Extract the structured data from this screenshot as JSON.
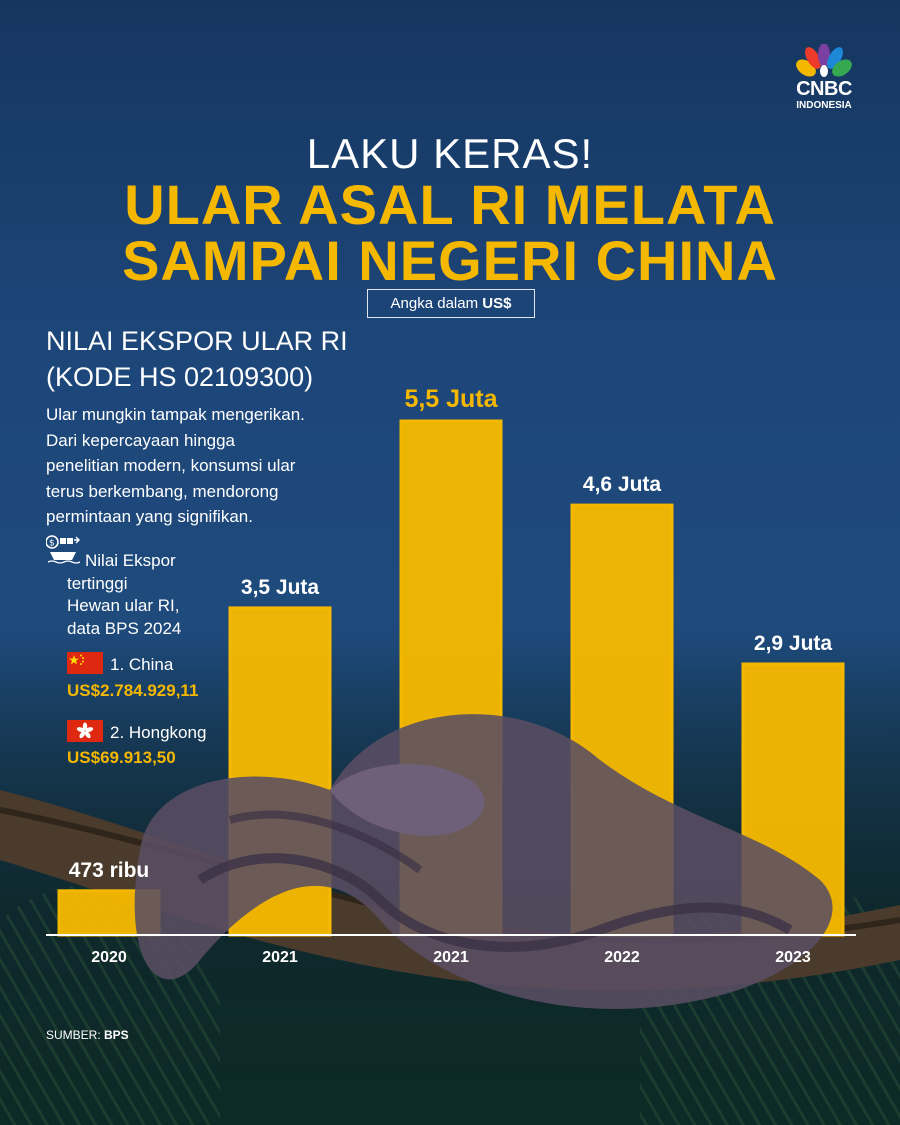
{
  "brand": {
    "logo_text": "CNBC",
    "logo_sub": "INDONESIA"
  },
  "header": {
    "kicker": "LAKU KERAS!",
    "title_line1": "ULAR ASAL RI MELATA",
    "title_line2": "SAMPAI NEGERI CHINA",
    "unit_prefix": "Angka dalam ",
    "unit_currency": "US$"
  },
  "info": {
    "subtitle_line1": "NILAI EKSPOR ULAR RI",
    "subtitle_line2": "(KODE HS 02109300)",
    "description": [
      "Ular mungkin tampak mengerikan.",
      "Dari kepercayaan hingga",
      "penelitian modern, konsumsi ular",
      "terus berkembang, mendorong",
      "permintaan yang signifikan."
    ],
    "note": [
      "Nilai Ekspor",
      "tertinggi",
      "Hewan ular RI,",
      "data BPS 2024"
    ],
    "ranking": [
      {
        "label": "1. China",
        "value": "US$2.784.929,11",
        "flag": "china-flag-icon"
      },
      {
        "label": "2. Hongkong",
        "value": "US$69.913,50",
        "flag": "hongkong-flag-icon"
      }
    ]
  },
  "source": {
    "prefix": "SUMBER: ",
    "name": "BPS"
  },
  "colors": {
    "accent": "#f5b800",
    "background": "#1e4a7c",
    "text": "#ffffff"
  },
  "chart_data": {
    "type": "bar",
    "categories": [
      "2020",
      "2021",
      "2021",
      "2022",
      "2023"
    ],
    "values": [
      0.473,
      3.5,
      5.5,
      4.6,
      2.9
    ],
    "value_labels": [
      "473 ribu",
      "3,5 Juta",
      "5,5 Juta",
      "4,6 Juta",
      "2,9 Juta"
    ],
    "highlight_index": 2,
    "ylim": [
      0,
      5.5
    ],
    "grid": false,
    "legend": "none"
  }
}
